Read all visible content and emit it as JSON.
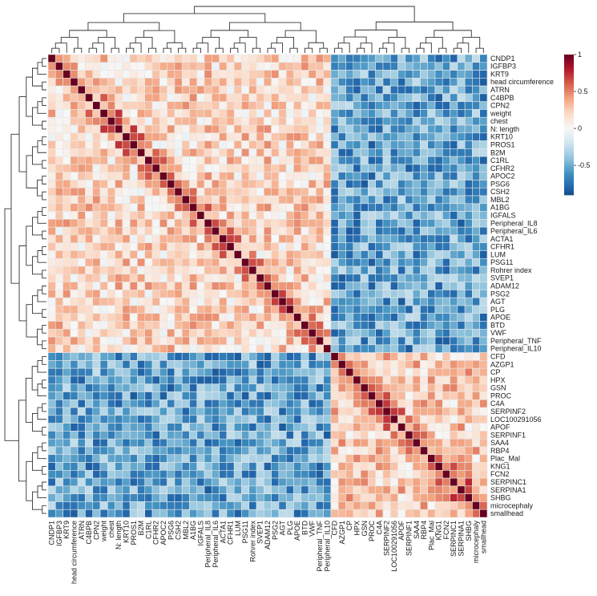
{
  "chart_data": {
    "type": "heatmap",
    "title": "",
    "labels": [
      "CNDP1",
      "IGFBP3",
      "KRT9",
      "head circumference",
      "ATRN",
      "C4BPB",
      "CPN2",
      "weight",
      "chest",
      "N: length",
      "KRT10",
      "PROS1",
      "B2M",
      "C1RL",
      "CFHR2",
      "APOC2",
      "PSG6",
      "CSH2",
      "MBL2",
      "A1BG",
      "IGFALS",
      "Peripheral_IL8",
      "Peripheral_IL6",
      "ACTA1",
      "CFHR1",
      "LUM",
      "PSG11",
      "Rohrer index",
      "SVEP1",
      "ADAM12",
      "PSG2",
      "AGT",
      "PLG",
      "APOE",
      "BTD",
      "VWF",
      "Peripheral_TNF",
      "Peripheral_IL10",
      "CFD",
      "AZGP1",
      "CP",
      "HPX",
      "GSN",
      "PROC",
      "C4A",
      "SERPINF2",
      "LOC100291056",
      "APOF",
      "SERPINF1",
      "SAA4",
      "RBP4",
      "Plac_Mal",
      "KNG1",
      "FCN2",
      "SERPINC1",
      "SERPINA1",
      "SHBG",
      "microcephaly",
      "smallhead"
    ],
    "clusters": {
      "group_a_count": 38,
      "group_b_count": 21
    },
    "value_range": [
      -0.9,
      1.0
    ],
    "legend": {
      "ticks": [
        1,
        0.5,
        0,
        -0.5
      ],
      "placement": "top-right",
      "colors": [
        "#053061",
        "#2166ac",
        "#4393c3",
        "#92c5de",
        "#d1e5f0",
        "#f7f7f7",
        "#fddbc7",
        "#f4a582",
        "#d6604d",
        "#b2182b",
        "#67001f"
      ]
    },
    "grid": true,
    "diagonal_value": 1
  }
}
